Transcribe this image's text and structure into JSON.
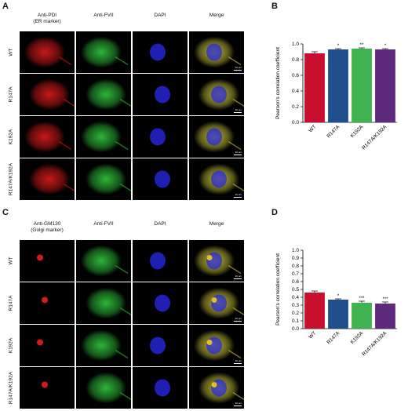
{
  "panels": {
    "a": {
      "letter": "A",
      "col_heads": [
        "Anti-PDI\n(ER marker)",
        "Anti-FVII",
        "DAPI",
        "Merge"
      ],
      "rows": [
        "WT",
        "R147A",
        "K192A",
        "R147A/K192A"
      ],
      "scale_label": "10 μm"
    },
    "b": {
      "letter": "B"
    },
    "c": {
      "letter": "C",
      "col_heads": [
        "Anti-GM130\n(Golgi marker)",
        "Anti-FVII",
        "DAPI",
        "Merge"
      ],
      "rows": [
        "WT",
        "R147A",
        "K192A",
        "R147A/K192A"
      ],
      "scale_label": "10 μm"
    },
    "d": {
      "letter": "D"
    }
  },
  "colors": {
    "red": "#c8102e",
    "blue": "#1f4e8c",
    "green": "#3fb34f",
    "purple": "#5e2a7e"
  },
  "chart_data": [
    {
      "type": "bar",
      "panel": "B",
      "categories": [
        "WT",
        "R147A",
        "K192A",
        "R147A/K192A"
      ],
      "values": [
        0.88,
        0.93,
        0.94,
        0.93
      ],
      "errors": [
        0.02,
        0.01,
        0.01,
        0.01
      ],
      "significance": [
        "",
        "*",
        "**",
        "*"
      ],
      "colors": [
        "#c8102e",
        "#1f4e8c",
        "#3fb34f",
        "#5e2a7e"
      ],
      "ylabel": "Pearson's correlation coefficient",
      "ylim": [
        0,
        1.0
      ],
      "yticks": [
        "0.0",
        "0.2",
        "0.4",
        "0.6",
        "0.8",
        "1.0"
      ]
    },
    {
      "type": "bar",
      "panel": "D",
      "categories": [
        "WT",
        "R147A",
        "K192A",
        "R147A/K192A"
      ],
      "values": [
        0.46,
        0.37,
        0.33,
        0.32
      ],
      "errors": [
        0.02,
        0.01,
        0.02,
        0.02
      ],
      "significance": [
        "",
        "*",
        "***",
        "***"
      ],
      "colors": [
        "#c8102e",
        "#1f4e8c",
        "#3fb34f",
        "#5e2a7e"
      ],
      "ylabel": "Pearson's correlation coefficient",
      "ylim": [
        0,
        1.0
      ],
      "yticks": [
        "0.0",
        "0.1",
        "0.2",
        "0.3",
        "0.4",
        "0.5",
        "0.6",
        "0.7",
        "0.8",
        "0.9",
        "1.0"
      ]
    }
  ]
}
